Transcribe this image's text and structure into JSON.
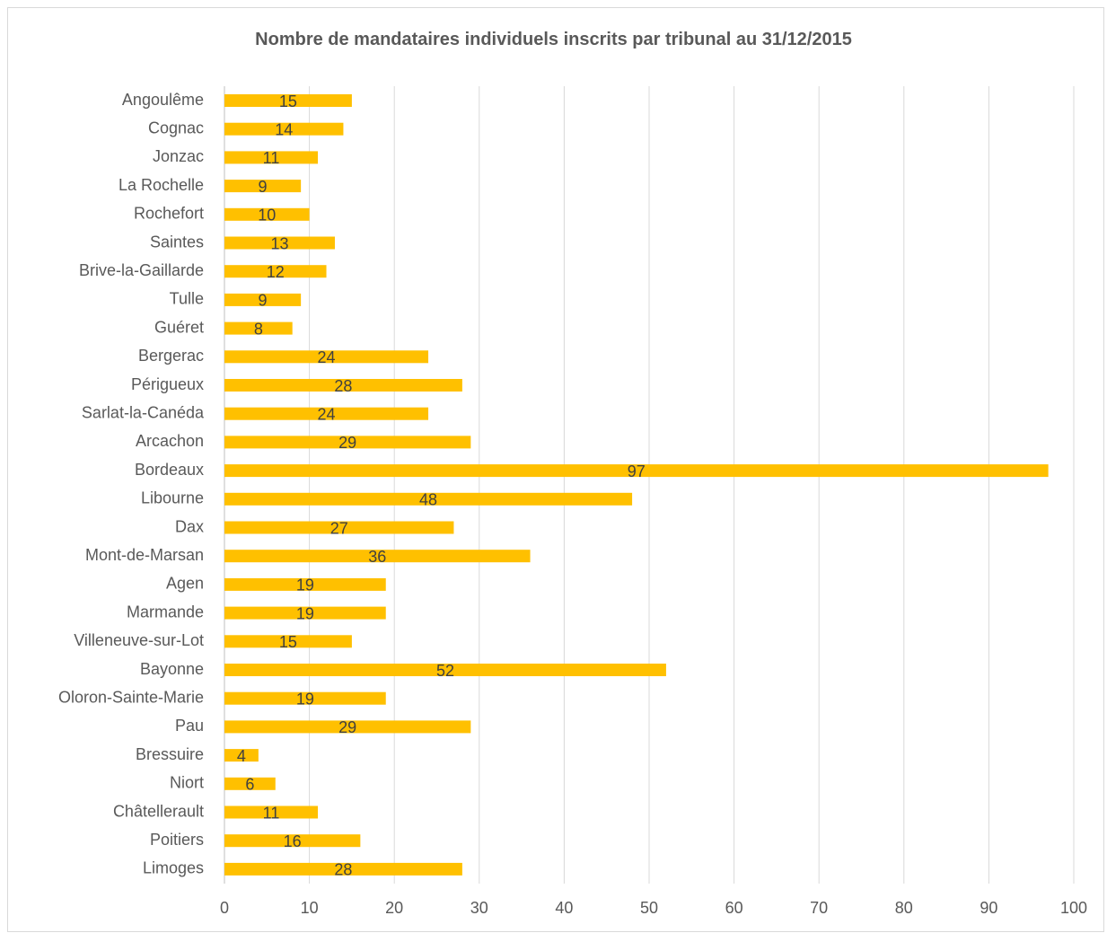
{
  "chart_data": {
    "type": "bar",
    "orientation": "horizontal",
    "title": "Nombre de mandataires individuels inscrits par tribunal au 31/12/2015",
    "xlabel": "",
    "ylabel": "",
    "xlim": [
      0,
      100
    ],
    "x_ticks": [
      "0",
      "10",
      "20",
      "30",
      "40",
      "50",
      "60",
      "70",
      "80",
      "90",
      "100"
    ],
    "grid": "vertical",
    "legend": "none",
    "bar_color": "#FFC000",
    "categories": [
      "Angoulême",
      "Cognac",
      "Jonzac",
      "La Rochelle",
      "Rochefort",
      "Saintes",
      "Brive-la-Gaillarde",
      "Tulle",
      "Guéret",
      "Bergerac",
      "Périgueux",
      "Sarlat-la-Canéda",
      "Arcachon",
      "Bordeaux",
      "Libourne",
      "Dax",
      "Mont-de-Marsan",
      "Agen",
      "Marmande",
      "Villeneuve-sur-Lot",
      "Bayonne",
      "Oloron-Sainte-Marie",
      "Pau",
      "Bressuire",
      "Niort",
      "Châtellerault",
      "Poitiers",
      "Limoges"
    ],
    "values": [
      15,
      14,
      11,
      9,
      10,
      13,
      12,
      9,
      8,
      24,
      28,
      24,
      29,
      97,
      48,
      27,
      36,
      19,
      19,
      15,
      52,
      19,
      29,
      4,
      6,
      11,
      16,
      28
    ]
  }
}
